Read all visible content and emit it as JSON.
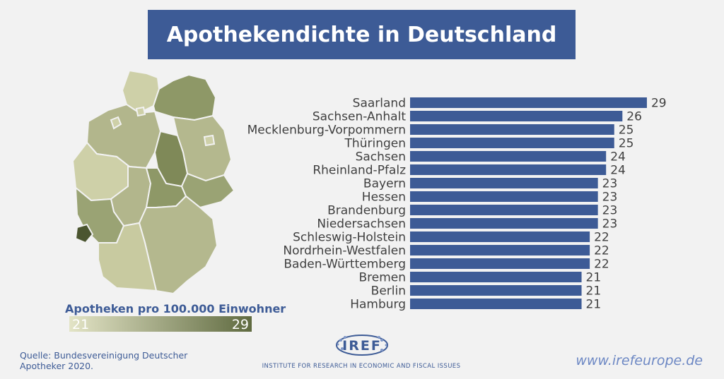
{
  "header": {
    "title": "Apothekendichte in Deutschland"
  },
  "legend": {
    "title": "Apotheken pro 100.000 Einwohner",
    "min": "21",
    "max": "29",
    "color_low": "#e3e4c6",
    "color_high": "#5f6a40"
  },
  "chart_data": {
    "type": "bar",
    "orientation": "horizontal",
    "categories": [
      "Saarland",
      "Sachsen-Anhalt",
      "Mecklenburg-Vorpommern",
      "Thüringen",
      "Sachsen",
      "Rheinland-Pfalz",
      "Bayern",
      "Hessen",
      "Brandenburg",
      "Niedersachsen",
      "Schleswig-Holstein",
      "Nordrhein-Westfalen",
      "Baden-Württemberg",
      "Bremen",
      "Berlin",
      "Hamburg"
    ],
    "values": [
      29,
      26,
      25,
      25,
      24,
      24,
      23,
      23,
      23,
      23,
      22,
      22,
      22,
      21,
      21,
      21
    ],
    "bar_color": "#3d5b96",
    "grid": false
  },
  "footer": {
    "source": "Quelle: Bundesvereinigung Deutscher Apotheker 2020.",
    "logo_text": "IREF",
    "institute": "Institute for Research in Economic and Fiscal issues",
    "website": "www.irefeurope.de"
  }
}
